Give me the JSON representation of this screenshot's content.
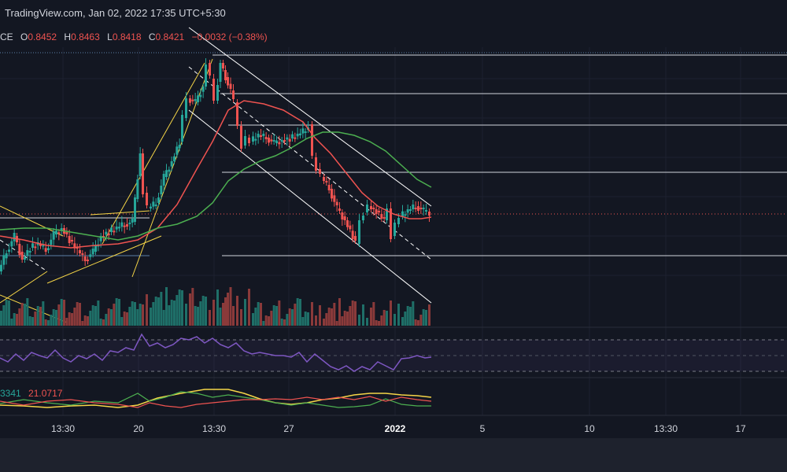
{
  "header": {
    "source": "TradingView.com, Jan 02, 2022 17:35 UTC+5:30"
  },
  "legend": {
    "symbol": "CE",
    "open_label": "O",
    "open": "0.8452",
    "high_label": "H",
    "high": "0.8463",
    "low_label": "L",
    "low": "0.8418",
    "close_label": "C",
    "close": "0.8421",
    "change": "−0.0032 (−0.38%)"
  },
  "indicator": {
    "value1": "3341",
    "value2": "21.0717"
  },
  "x_axis": {
    "labels": [
      "13:30",
      "20",
      "13:30",
      "27",
      "2022",
      "5",
      "10",
      "13:30",
      "17"
    ]
  },
  "colors": {
    "background": "#131722",
    "up": "#26a69a",
    "down": "#ef5350",
    "ma_fast": "#ef5350",
    "ma_slow": "#4caf50",
    "rsi": "#7e57c2",
    "trendline": "#f5d547",
    "channel": "#ffffff"
  }
}
